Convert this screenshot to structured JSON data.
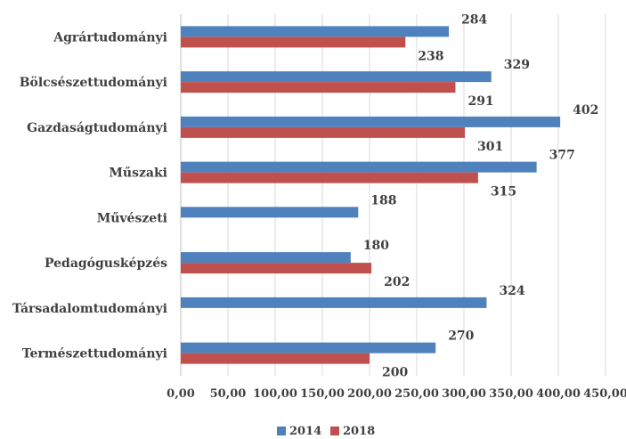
{
  "chart_data": {
    "type": "bar",
    "orientation": "horizontal",
    "title": "",
    "xlabel": "",
    "ylabel": "",
    "categories": [
      "Agrártudományi",
      "Bölcsészettudományi",
      "Gazdaságtudományi",
      "Műszaki",
      "Művészeti",
      "Pedagógusképzés",
      "Társadalomtudományi",
      "Természettudományi"
    ],
    "series": [
      {
        "name": "2014",
        "color": "#4f81bd",
        "values": [
          284,
          329,
          402,
          377,
          188,
          180,
          324,
          270
        ]
      },
      {
        "name": "2018",
        "color": "#c0504d",
        "values": [
          238,
          291,
          301,
          315,
          null,
          202,
          null,
          200
        ]
      }
    ],
    "xlim": [
      0,
      450
    ],
    "xticks": [
      0,
      50,
      100,
      150,
      200,
      250,
      300,
      350,
      400,
      450
    ],
    "xtick_labels": [
      "0,00",
      "50,00",
      "100,00",
      "150,00",
      "200,00",
      "250,00",
      "300,00",
      "350,00",
      "400,00",
      "450,00"
    ],
    "grid": true,
    "legend": "bottom"
  }
}
